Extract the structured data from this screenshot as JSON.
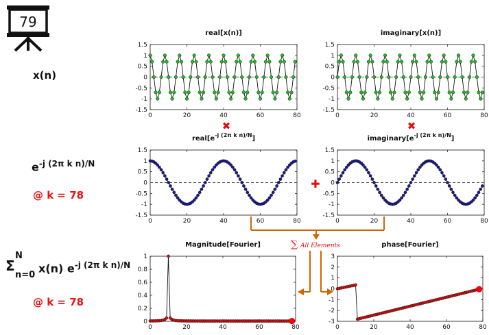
{
  "slide": {
    "number": "79"
  },
  "labels": {
    "xn": "x(n)",
    "exp_base": "e",
    "exp_sup": "-j (2π k n)/N",
    "k_note": "@ k = 78",
    "sum_sigma": "Σ",
    "sum_sub": "n=0",
    "sum_sup": "N",
    "sum_body": "x(n) e",
    "k_note2": "@ k = 78"
  },
  "operators": {
    "multiply": "✖",
    "add": "✚",
    "sum_symbol": "∑",
    "sum_label": "All Elements"
  },
  "colors": {
    "green_marker": "#22bb22",
    "blue_marker": "#1a1a8c",
    "red_marker": "#cc1111",
    "arrow": "#cc6600",
    "accent_red": "#ee1111"
  },
  "chart_data": [
    {
      "id": "real_x",
      "type": "line",
      "title": "real[x(n)]",
      "xlim": [
        0,
        80
      ],
      "ylim": [
        -1.5,
        1.5
      ],
      "xticks": [
        0,
        20,
        40,
        60,
        80
      ],
      "yticks": [
        1.5,
        1,
        0.5,
        0,
        -0.5,
        -1,
        -1.5
      ],
      "series": [
        {
          "name": "real[x(n)]",
          "formula": "cos(2*pi*10*n/80)",
          "n_points": 80,
          "marker_color": "green"
        }
      ]
    },
    {
      "id": "imag_x",
      "type": "line",
      "title": "imaginary[x(n)]",
      "xlim": [
        0,
        80
      ],
      "ylim": [
        -1.5,
        1.5
      ],
      "xticks": [
        0,
        20,
        40,
        60,
        80
      ],
      "yticks": [
        1.5,
        1,
        0.5,
        0,
        -0.5,
        -1,
        -1.5
      ],
      "series": [
        {
          "name": "imaginary[x(n)]",
          "formula": "sin(2*pi*10*n/80)",
          "n_points": 80,
          "marker_color": "green"
        }
      ]
    },
    {
      "id": "real_e",
      "type": "line",
      "title": "real[e",
      "title_sup": "-j (2π k n)/N",
      "title_end": "]",
      "xlim": [
        0,
        80
      ],
      "ylim": [
        -1.5,
        1.5
      ],
      "xticks": [
        0,
        20,
        40,
        60,
        80
      ],
      "yticks": [
        1.5,
        1,
        0.5,
        0,
        -0.5,
        -1,
        -1.5
      ],
      "series": [
        {
          "name": "real[e^-j2πkn/N]",
          "formula": "cos(2*pi*78*n/80)",
          "n_points": 80,
          "marker_color": "blue"
        }
      ]
    },
    {
      "id": "imag_e",
      "type": "line",
      "title": "imaginary[e",
      "title_sup": "-j (2π k n)/N",
      "title_end": "]",
      "xlim": [
        0,
        80
      ],
      "ylim": [
        -1.5,
        1.5
      ],
      "xticks": [
        0,
        20,
        40,
        60,
        80
      ],
      "yticks": [
        1.5,
        1,
        0.5,
        0,
        -0.5,
        -1,
        -1.5
      ],
      "series": [
        {
          "name": "imaginary[e^-j2πkn/N]",
          "formula": "sin(2*pi*2*n/80)",
          "n_points": 80,
          "marker_color": "blue"
        }
      ]
    },
    {
      "id": "magnitude",
      "type": "line",
      "title": "Magnitude[Fourier]",
      "xlim": [
        0,
        80
      ],
      "ylim": [
        0,
        1
      ],
      "xticks": [
        0,
        20,
        40,
        60,
        80
      ],
      "yticks": [
        1,
        0.8,
        0.6,
        0.4,
        0.2,
        0
      ],
      "series": [
        {
          "name": "Magnitude",
          "k_computed": 79,
          "peak_k": 10,
          "peak_value": 1,
          "highlight_k": 78,
          "marker_color": "red"
        }
      ]
    },
    {
      "id": "phase",
      "type": "line",
      "title": "phase[Fourier]",
      "xlim": [
        0,
        80
      ],
      "ylim": [
        -3,
        3
      ],
      "xticks": [
        0,
        20,
        40,
        60,
        80
      ],
      "yticks": [
        3,
        2,
        1,
        0,
        -1,
        -2,
        -3
      ],
      "series": [
        {
          "name": "Phase",
          "k_computed": 79,
          "start_value": 0.0,
          "jump_k": 10,
          "pre_jump_value": 0.35,
          "post_jump_value": -2.8,
          "end_value": -0.04,
          "highlight_k": 78,
          "marker_color": "red"
        }
      ]
    }
  ]
}
